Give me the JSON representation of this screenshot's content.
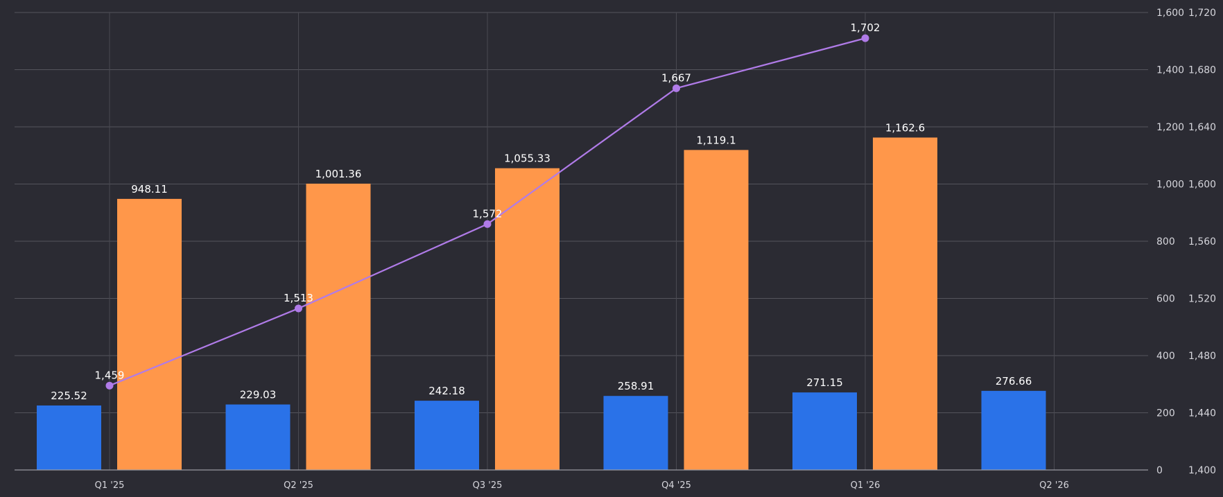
{
  "chart_data": {
    "type": "bar",
    "categories": [
      "Q1 '25",
      "Q2 '25",
      "Q3 '25",
      "Q4 '25",
      "Q1 '26",
      "Q2 '26"
    ],
    "series": [
      {
        "type": "bar",
        "axis": "left",
        "color": "#2a72e8",
        "values": [
          225.52,
          229.03,
          242.18,
          258.91,
          271.15,
          276.66
        ],
        "labels": [
          "225.52",
          "229.03",
          "242.18",
          "258.91",
          "271.15",
          "276.66"
        ]
      },
      {
        "type": "bar",
        "axis": "left",
        "color": "#ff974a",
        "values": [
          948.11,
          1001.36,
          1055.33,
          1119.1,
          1162.6,
          null
        ],
        "labels": [
          "948.11",
          "1,001.36",
          "1,055.33",
          "1,119.1",
          "1,162.6",
          ""
        ]
      },
      {
        "type": "line",
        "axis": "right",
        "color": "#b07be8",
        "values": [
          1459,
          1513,
          1572,
          1667,
          1702,
          null
        ],
        "labels": [
          "1,459",
          "1,513",
          "1,572",
          "1,667",
          "1,702",
          ""
        ]
      }
    ],
    "y_left": {
      "range": [
        0,
        1600
      ],
      "ticks": [
        0,
        200,
        400,
        600,
        800,
        1000,
        1200,
        1400,
        1600
      ],
      "tick_labels": [
        "0",
        "200",
        "400",
        "600",
        "800",
        "1,000",
        "1,200",
        "1,400",
        "1,600"
      ]
    },
    "y_right": {
      "range": [
        1400,
        1720
      ],
      "ticks": [
        1400,
        1440,
        1480,
        1520,
        1560,
        1600,
        1640,
        1680,
        1720
      ],
      "tick_labels": [
        "1,400",
        "1,440",
        "1,480",
        "1,520",
        "1,560",
        "1,600",
        "1,640",
        "1,680",
        "1,720"
      ]
    },
    "title": "",
    "xlabel": "",
    "ylabel": "",
    "grid": true,
    "legend": "none"
  }
}
